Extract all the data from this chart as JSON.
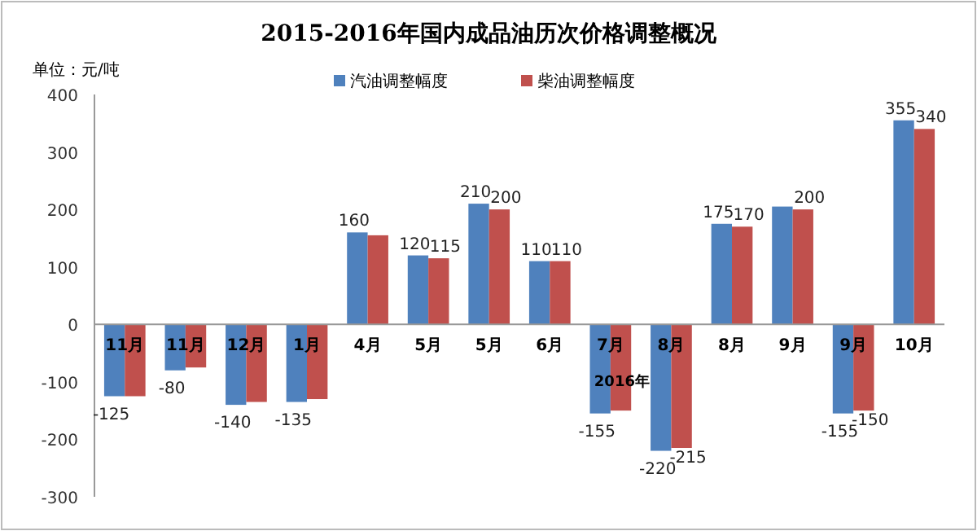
{
  "chart_data": {
    "type": "bar",
    "title": "2015-2016年国内成品油历次价格调整概况",
    "ylabel": "单位：元/吨",
    "categories": [
      "11月",
      "11月",
      "12月",
      "1月",
      "4月",
      "5月",
      "5月",
      "6月",
      "7月",
      "8月",
      "8月",
      "9月",
      "9月",
      "10月"
    ],
    "series": [
      {
        "name": "汽油调整幅度",
        "color": "#4f81bd",
        "values": [
          -125,
          -80,
          -140,
          -135,
          160,
          120,
          210,
          110,
          -155,
          -220,
          175,
          205,
          -155,
          355
        ],
        "value_labels": [
          "-125",
          "-80",
          "-140",
          "-135",
          "160",
          "120",
          "210",
          "110",
          "-155",
          "-220",
          "175",
          null,
          "-155",
          "355"
        ]
      },
      {
        "name": "柴油调整幅度",
        "color": "#c0504d",
        "values": [
          -125,
          -75,
          -135,
          -130,
          155,
          115,
          200,
          110,
          -150,
          -215,
          170,
          200,
          -150,
          340
        ],
        "value_labels": [
          null,
          null,
          null,
          null,
          null,
          "115",
          "200",
          "110",
          null,
          "-215",
          "170",
          "200",
          "-150",
          "340"
        ]
      }
    ],
    "ylim": [
      -300,
      400
    ],
    "yticks": [
      -300,
      -200,
      -100,
      0,
      100,
      200,
      300,
      400
    ],
    "grid": false,
    "legend": "top",
    "annotations": [
      "2016年"
    ]
  }
}
